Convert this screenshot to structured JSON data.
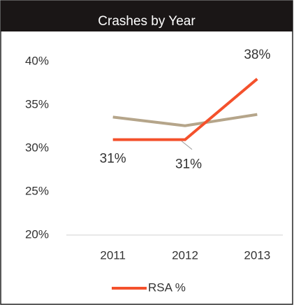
{
  "chart_data": {
    "type": "line",
    "title": "Crashes by Year",
    "categories": [
      "2011",
      "2012",
      "2013"
    ],
    "series": [
      {
        "color": "#b5a58a",
        "values": [
          33.6,
          32.6,
          33.9
        ]
      },
      {
        "name": "RSA %",
        "color": "#f4512c",
        "values": [
          31,
          31,
          38
        ],
        "value_labels": [
          "31%",
          "31%",
          "38%"
        ]
      }
    ],
    "ylim": [
      20,
      40
    ],
    "yticks": [
      {
        "value": 20,
        "label": "20%"
      },
      {
        "value": 25,
        "label": "25%"
      },
      {
        "value": 30,
        "label": "30%"
      },
      {
        "value": 35,
        "label": "35%"
      },
      {
        "value": 40,
        "label": "40%"
      }
    ],
    "legend": "bottom"
  }
}
